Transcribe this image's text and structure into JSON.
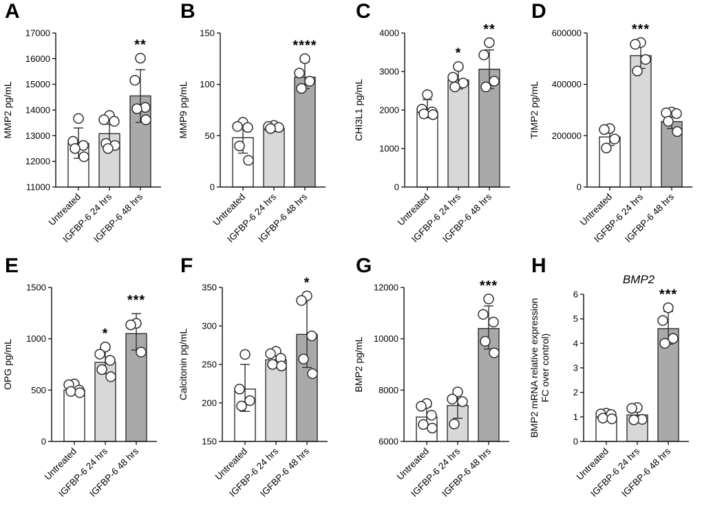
{
  "colors": {
    "background": "#ffffff",
    "bar_fills": [
      "#ffffff",
      "#d8d8d8",
      "#a9a9a9"
    ],
    "outline": "#2d2d2d",
    "axis": "#1a1a1a",
    "point_fill": "#ffffff",
    "text": "#000000"
  },
  "categories": [
    "Untreated",
    "IGFBP-6 24 hrs",
    "IGFBP-6 48 hrs"
  ],
  "chart_data": [
    {
      "panel": "A",
      "type": "bar",
      "title": "",
      "ylabel": "MMP2 pg/mL",
      "ylim": [
        11000,
        17000
      ],
      "yticks": [
        11000,
        12000,
        13000,
        14000,
        15000,
        16000,
        17000
      ],
      "axis_x": 81,
      "categories": [
        "Untreated",
        "IGFBP-6 24 hrs",
        "IGFBP-6 48 hrs"
      ],
      "bars": [
        {
          "category": "Untreated",
          "value": 12700,
          "err": [
            12120,
            13300
          ],
          "points": [
            13670,
            12780,
            12620,
            12500,
            12180
          ],
          "sig": ""
        },
        {
          "category": "IGFBP-6 24 hrs",
          "value": 13080,
          "err": [
            12640,
            13450
          ],
          "points": [
            13790,
            13620,
            13560,
            12700,
            12620,
            12500
          ],
          "sig": ""
        },
        {
          "category": "IGFBP-6 48 hrs",
          "value": 14550,
          "err": [
            13520,
            15570
          ],
          "points": [
            16020,
            15160,
            14100,
            14050,
            13620
          ],
          "sig": "**"
        }
      ]
    },
    {
      "panel": "B",
      "type": "bar",
      "title": "",
      "ylabel": "MMP9 pg/mL",
      "ylim": [
        0,
        150
      ],
      "yticks": [
        0,
        50,
        100,
        150
      ],
      "axis_x": 65,
      "categories": [
        "Untreated",
        "IGFBP-6 24 hrs",
        "IGFBP-6 48 hrs"
      ],
      "bars": [
        {
          "category": "Untreated",
          "value": 48,
          "err": [
            33,
            63
          ],
          "points": [
            63,
            59,
            58,
            40,
            26
          ],
          "sig": ""
        },
        {
          "category": "IGFBP-6 24 hrs",
          "value": 57,
          "err": [
            54,
            60
          ],
          "points": [
            60,
            59,
            58,
            57
          ],
          "sig": ""
        },
        {
          "category": "IGFBP-6 48 hrs",
          "value": 107,
          "err": [
            96,
            122
          ],
          "points": [
            125,
            111,
            103,
            96
          ],
          "sig": "****"
        }
      ]
    },
    {
      "panel": "C",
      "type": "bar",
      "title": "",
      "ylabel": "CHI3L1 pg/mL",
      "ylim": [
        0,
        4000
      ],
      "yticks": [
        0,
        1000,
        2000,
        3000,
        4000
      ],
      "axis_x": 78,
      "categories": [
        "Untreated",
        "IGFBP-6 24 hrs",
        "IGFBP-6 48 hrs"
      ],
      "bars": [
        {
          "category": "Untreated",
          "value": 1950,
          "err": [
            1800,
            2270
          ],
          "points": [
            2400,
            2020,
            1950,
            1900,
            1880
          ],
          "sig": ""
        },
        {
          "category": "IGFBP-6 24 hrs",
          "value": 2780,
          "err": [
            2550,
            3070
          ],
          "points": [
            3130,
            2850,
            2700,
            2600
          ],
          "sig": "*"
        },
        {
          "category": "IGFBP-6 48 hrs",
          "value": 3060,
          "err": [
            2560,
            3560
          ],
          "points": [
            3750,
            3430,
            2750,
            2600
          ],
          "sig": "**"
        }
      ]
    },
    {
      "panel": "D",
      "type": "bar",
      "title": "",
      "ylabel": "TIMP2 pg/mL",
      "ylim": [
        0,
        600000
      ],
      "yticks": [
        0,
        200000,
        400000,
        600000
      ],
      "axis_x": 88,
      "categories": [
        "Untreated",
        "IGFBP-6 24 hrs",
        "IGFBP-6 48 hrs"
      ],
      "bars": [
        {
          "category": "Untreated",
          "value": 195000,
          "err": [
            162000,
            230000
          ],
          "points": [
            228000,
            224000,
            187000,
            152000
          ],
          "sig": ""
        },
        {
          "category": "IGFBP-6 24 hrs",
          "value": 512000,
          "err": [
            462000,
            560000
          ],
          "points": [
            563000,
            556000,
            497000,
            452000
          ],
          "sig": "***"
        },
        {
          "category": "IGFBP-6 48 hrs",
          "value": 255000,
          "err": [
            228000,
            292000
          ],
          "points": [
            292000,
            289000,
            286000,
            256000,
            216000
          ],
          "sig": ""
        }
      ]
    },
    {
      "panel": "E",
      "type": "bar",
      "title": "",
      "ylabel": "OPG pg/mL",
      "ylim": [
        0,
        1500
      ],
      "yticks": [
        0,
        500,
        1000,
        1500
      ],
      "axis_x": 75,
      "categories": [
        "Untreated",
        "IGFBP-6 24 hrs",
        "IGFBP-6 48 hrs"
      ],
      "bars": [
        {
          "category": "Untreated",
          "value": 500,
          "err": [
            470,
            545
          ],
          "points": [
            560,
            552,
            500,
            487,
            475
          ],
          "sig": ""
        },
        {
          "category": "IGFBP-6 24 hrs",
          "value": 770,
          "err": [
            660,
            890
          ],
          "points": [
            920,
            850,
            790,
            700,
            630
          ],
          "sig": "*"
        },
        {
          "category": "IGFBP-6 48 hrs",
          "value": 1050,
          "err": [
            890,
            1245
          ],
          "points": [
            1150,
            1135,
            870
          ],
          "sig": "***"
        }
      ]
    },
    {
      "panel": "F",
      "type": "bar",
      "title": "",
      "ylabel": "Calcitonin pg/mL",
      "ylim": [
        150,
        350
      ],
      "yticks": [
        150,
        200,
        250,
        300,
        350
      ],
      "axis_x": 68,
      "categories": [
        "Untreated",
        "IGFBP-6 24 hrs",
        "IGFBP-6 48 hrs"
      ],
      "bars": [
        {
          "category": "Untreated",
          "value": 218,
          "err": [
            189,
            250
          ],
          "points": [
            263,
            218,
            203,
            196
          ],
          "sig": ""
        },
        {
          "category": "IGFBP-6 24 hrs",
          "value": 256,
          "err": [
            247,
            265
          ],
          "points": [
            267,
            264,
            258,
            250,
            248
          ],
          "sig": ""
        },
        {
          "category": "IGFBP-6 48 hrs",
          "value": 289,
          "err": [
            246,
            338
          ],
          "points": [
            339,
            333,
            287,
            257,
            238
          ],
          "sig": "*"
        }
      ]
    },
    {
      "panel": "G",
      "type": "bar",
      "title": "",
      "ylabel": "BMP2 pg/mL",
      "ylim": [
        6000,
        12000
      ],
      "yticks": [
        6000,
        8000,
        10000,
        12000
      ],
      "axis_x": 77,
      "categories": [
        "Untreated",
        "IGFBP-6 24 hrs",
        "IGFBP-6 48 hrs"
      ],
      "bars": [
        {
          "category": "Untreated",
          "value": 6950,
          "err": [
            6550,
            7350
          ],
          "points": [
            7480,
            7370,
            7020,
            6660,
            6520
          ],
          "sig": ""
        },
        {
          "category": "IGFBP-6 24 hrs",
          "value": 7400,
          "err": [
            6900,
            7950
          ],
          "points": [
            7930,
            7650,
            7550,
            6680
          ],
          "sig": ""
        },
        {
          "category": "IGFBP-6 48 hrs",
          "value": 10400,
          "err": [
            9600,
            11280
          ],
          "points": [
            11550,
            10950,
            10650,
            9900,
            9450
          ],
          "sig": "***"
        }
      ]
    },
    {
      "panel": "H",
      "type": "bar",
      "title": "BMP2",
      "ylabel": "BMP2 mRNA relative expression FC over control)",
      "ylabel_lines": [
        "BMP2 mRNA relative expression",
        "FC over control)"
      ],
      "ylim": [
        0,
        6
      ],
      "yticks": [
        0,
        1,
        2,
        3,
        4,
        5,
        6
      ],
      "axis_x": 83,
      "categories": [
        "Untreated",
        "IGFBP-6 24 hrs",
        "IGFBP-6 48 hrs"
      ],
      "bars": [
        {
          "category": "Untreated",
          "value": 1.0,
          "err": [
            0.88,
            1.12
          ],
          "points": [
            1.15,
            1.12,
            1.1,
            0.95,
            0.92
          ],
          "sig": ""
        },
        {
          "category": "IGFBP-6 24 hrs",
          "value": 1.08,
          "err": [
            0.85,
            1.35
          ],
          "points": [
            1.38,
            1.35,
            0.9,
            0.88
          ],
          "sig": ""
        },
        {
          "category": "IGFBP-6 48 hrs",
          "value": 4.6,
          "err": [
            3.97,
            5.3
          ],
          "points": [
            5.45,
            4.93,
            4.2,
            4.0
          ],
          "sig": "***"
        }
      ]
    }
  ]
}
